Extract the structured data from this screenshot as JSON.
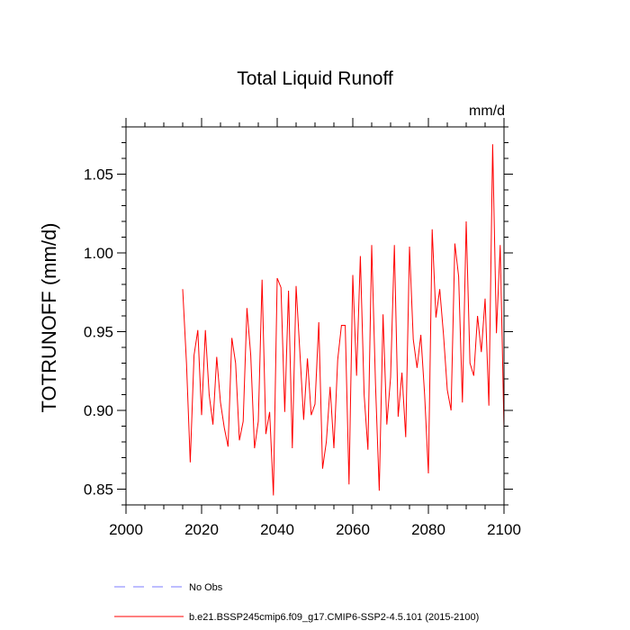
{
  "chart_data": {
    "type": "line",
    "title": "Total Liquid Runoff",
    "units": "mm/d",
    "ylabel": "TOTRUNOFF  (mm/d)",
    "xlabel": "",
    "xlim": [
      2000,
      2100
    ],
    "ylim": [
      0.84,
      1.08
    ],
    "x_ticks": [
      2000,
      2020,
      2040,
      2060,
      2080,
      2100
    ],
    "y_ticks": [
      0.85,
      0.9,
      0.95,
      1.0,
      1.05
    ],
    "x_tick_labels": [
      "2000",
      "2020",
      "2040",
      "2060",
      "2080",
      "2100"
    ],
    "y_tick_labels": [
      "0.85",
      "0.90",
      "0.95",
      "1.00",
      "1.05"
    ],
    "grid": false,
    "legend_position": "bottom",
    "series": [
      {
        "name": "No Obs",
        "color": "#7b7bff",
        "style": "dashed",
        "x": [],
        "values": []
      },
      {
        "name": "b.e21.BSSP245cmip6.f09_g17.CMIP6-SSP2-4.5.101 (2015-2100)",
        "color": "#ff0000",
        "style": "solid",
        "x": [
          2015,
          2016,
          2017,
          2018,
          2019,
          2020,
          2021,
          2022,
          2023,
          2024,
          2025,
          2026,
          2027,
          2028,
          2029,
          2030,
          2031,
          2032,
          2033,
          2034,
          2035,
          2036,
          2037,
          2038,
          2039,
          2040,
          2041,
          2042,
          2043,
          2044,
          2045,
          2046,
          2047,
          2048,
          2049,
          2050,
          2051,
          2052,
          2053,
          2054,
          2055,
          2056,
          2057,
          2058,
          2059,
          2060,
          2061,
          2062,
          2063,
          2064,
          2065,
          2066,
          2067,
          2068,
          2069,
          2070,
          2071,
          2072,
          2073,
          2074,
          2075,
          2076,
          2077,
          2078,
          2079,
          2080,
          2081,
          2082,
          2083,
          2084,
          2085,
          2086,
          2087,
          2088,
          2089,
          2090,
          2091,
          2092,
          2093,
          2094,
          2095,
          2096,
          2097,
          2098,
          2099,
          2100
        ],
        "values": [
          0.977,
          0.93,
          0.867,
          0.935,
          0.951,
          0.897,
          0.951,
          0.91,
          0.891,
          0.934,
          0.905,
          0.889,
          0.877,
          0.946,
          0.93,
          0.881,
          0.893,
          0.965,
          0.935,
          0.876,
          0.893,
          0.983,
          0.885,
          0.899,
          0.846,
          0.984,
          0.978,
          0.899,
          0.976,
          0.876,
          0.979,
          0.937,
          0.894,
          0.933,
          0.897,
          0.904,
          0.956,
          0.863,
          0.88,
          0.915,
          0.876,
          0.932,
          0.954,
          0.954,
          0.853,
          0.986,
          0.922,
          0.998,
          0.91,
          0.875,
          1.005,
          0.917,
          0.849,
          0.961,
          0.891,
          0.921,
          1.005,
          0.896,
          0.924,
          0.883,
          1.004,
          0.945,
          0.927,
          0.948,
          0.91,
          0.86,
          1.015,
          0.959,
          0.977,
          0.948,
          0.913,
          0.9,
          1.006,
          0.985,
          0.905,
          1.02,
          0.93,
          0.922,
          0.96,
          0.937,
          0.971,
          0.903,
          1.069,
          0.949,
          1.005,
          0.888
        ]
      }
    ]
  }
}
